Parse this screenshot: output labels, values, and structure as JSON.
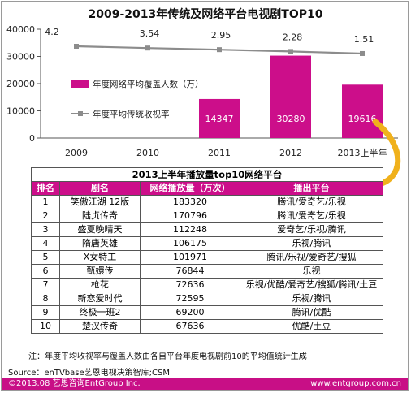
{
  "chart_data": {
    "type": "bar",
    "title": "2009-2013年传统及网络平台电视剧TOP10",
    "categories": [
      "2009",
      "2010",
      "2011",
      "2012",
      "2013上半年"
    ],
    "series": [
      {
        "name": "年度网络平均覆盖人数（万）",
        "type": "bar",
        "values": [
          null,
          null,
          14347,
          30280,
          19616
        ],
        "labels": [
          "",
          "",
          "14347",
          "30280",
          "19616"
        ]
      },
      {
        "name": "年度平均传统收视率",
        "type": "line",
        "values": [
          4.2,
          3.54,
          2.95,
          2.28,
          1.51
        ],
        "labels": [
          "4.2",
          "3.54",
          "2.95",
          "2.28",
          "1.51"
        ]
      }
    ],
    "ylim": [
      0,
      40000
    ],
    "yticks": [
      "0",
      "10000",
      "20000",
      "30000",
      "40000"
    ],
    "legend_position": "inside-left",
    "grid": false,
    "colors": {
      "bar": "#cc0e8a",
      "line": "#8c8c8c",
      "arrow": "#f0b11c"
    }
  },
  "table": {
    "title": "2013上半年播放量top10网络平台",
    "headers": [
      "排名",
      "剧名",
      "网络播放量（万次）",
      "播出平台"
    ],
    "rows": [
      [
        "1",
        "笑傲江湖 12版",
        "183320",
        "腾讯/爱奇艺/乐视"
      ],
      [
        "2",
        "陆贞传奇",
        "170796",
        "腾讯/爱奇艺/乐视"
      ],
      [
        "3",
        "盛夏晚晴天",
        "112248",
        "爱奇艺/乐视/腾讯"
      ],
      [
        "4",
        "隋唐英雄",
        "106175",
        "乐视/腾讯"
      ],
      [
        "5",
        "X女特工",
        "101971",
        "腾讯/乐视/爱奇艺/搜狐"
      ],
      [
        "6",
        "甄嬛传",
        "76844",
        "乐视"
      ],
      [
        "7",
        "枪花",
        "72636",
        "乐视/优酷/爱奇艺/搜狐/腾讯/土豆"
      ],
      [
        "8",
        "新恋爱时代",
        "72595",
        "乐视/腾讯"
      ],
      [
        "9",
        "终极一班2",
        "69200",
        "腾讯/优酷"
      ],
      [
        "10",
        "楚汉传奇",
        "67636",
        "优酷/土豆"
      ]
    ]
  },
  "note": "注：年度平均收视率与覆盖人数由各自平台年度电视剧前10的平均值统计生成",
  "source": "Source：enTVbase艺恩电视决策智库;CSM",
  "footer": {
    "left": "©2013.08  艺恩咨询EntGroup Inc.",
    "right": "www.entgroup.com.cn"
  }
}
